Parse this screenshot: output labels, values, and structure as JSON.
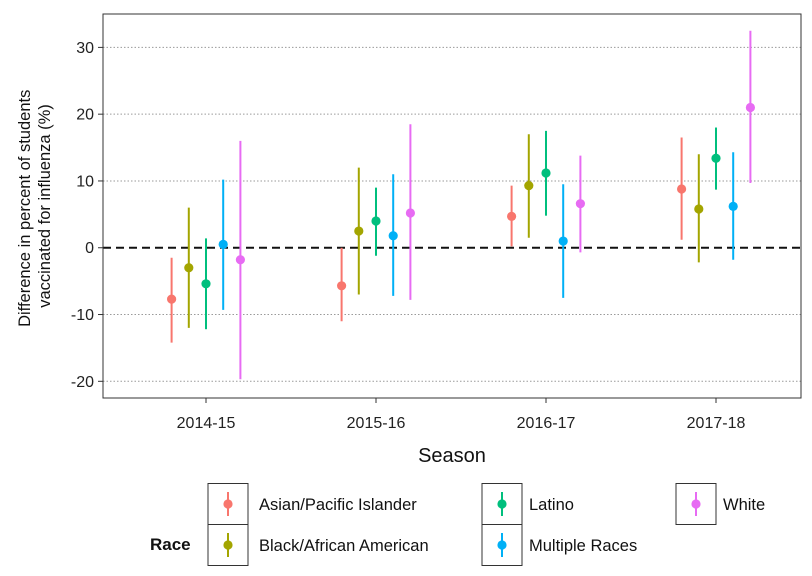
{
  "chart_data": {
    "type": "errorbar",
    "xlabel": "Season",
    "ylabel_lines": [
      "Difference in percent of students",
      "vaccinated for influenza (%)"
    ],
    "categories": [
      "2014-15",
      "2015-16",
      "2016-17",
      "2017-18"
    ],
    "ylim": [
      -22.5,
      35
    ],
    "yticks": [
      -20,
      -10,
      0,
      10,
      20,
      30
    ],
    "ytick_labels": [
      "-20",
      "-10",
      "0",
      "10",
      "20",
      "30"
    ],
    "grid": "horizontal dotted",
    "reference_line": 0,
    "legend": {
      "title": "Race",
      "placement": "bottom"
    },
    "series": [
      {
        "name": "Asian/Pacific Islander",
        "color": "#F8766D",
        "estimate": [
          -7.7,
          -5.7,
          4.7,
          8.8
        ],
        "lower": [
          -14.2,
          -11.0,
          0.2,
          1.2
        ],
        "upper": [
          -1.5,
          0.0,
          9.3,
          16.5
        ]
      },
      {
        "name": "Black/African American",
        "color": "#A3A500",
        "estimate": [
          -3.0,
          2.5,
          9.3,
          5.8
        ],
        "lower": [
          -12.0,
          -7.0,
          1.5,
          -2.2
        ],
        "upper": [
          6.0,
          12.0,
          17.0,
          14.0
        ]
      },
      {
        "name": "Latino",
        "color": "#00BF7D",
        "estimate": [
          -5.4,
          4.0,
          11.2,
          13.4
        ],
        "lower": [
          -12.2,
          -1.2,
          4.8,
          8.7
        ],
        "upper": [
          1.4,
          9.0,
          17.5,
          18.0
        ]
      },
      {
        "name": "Multiple Races",
        "color": "#00B0F6",
        "estimate": [
          0.5,
          1.8,
          1.0,
          6.2
        ],
        "lower": [
          -9.3,
          -7.2,
          -7.5,
          -1.8
        ],
        "upper": [
          10.2,
          11.0,
          9.5,
          14.3
        ]
      },
      {
        "name": "White",
        "color": "#E76BF3",
        "estimate": [
          -1.8,
          5.2,
          6.6,
          21.0
        ],
        "lower": [
          -19.7,
          -7.8,
          -0.7,
          9.7
        ],
        "upper": [
          16.0,
          18.5,
          13.8,
          32.5
        ]
      }
    ]
  }
}
